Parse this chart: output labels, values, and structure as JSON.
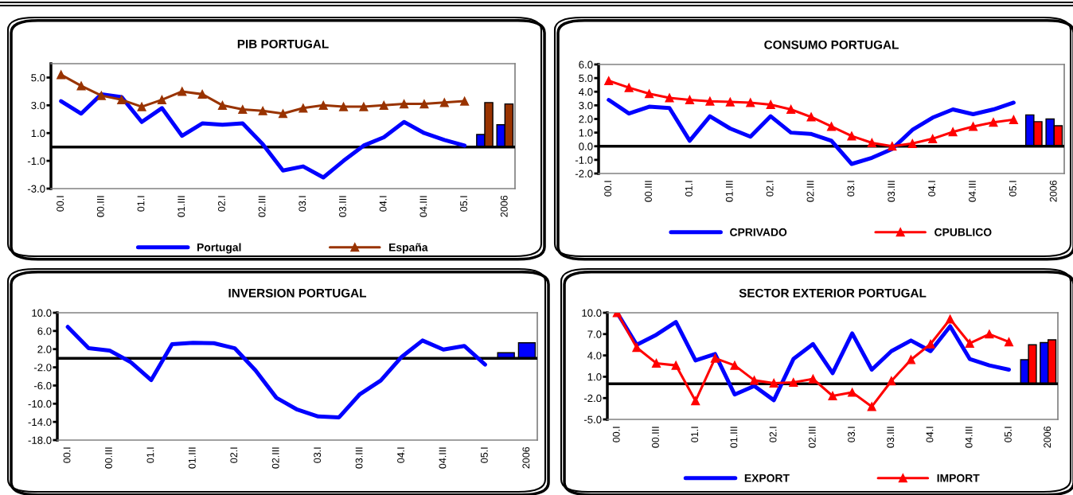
{
  "chart_data": [
    {
      "type": "line",
      "title": "PIB PORTUGAL",
      "categories": [
        "00.I",
        null,
        "00.III",
        null,
        "01.I",
        null,
        "01.III",
        null,
        "02.I",
        null,
        "02.III",
        null,
        "03.I",
        null,
        "03.III",
        null,
        "04.I",
        null,
        "04.III",
        null,
        "05.I",
        null,
        "2006"
      ],
      "series": [
        {
          "name": "Portugal",
          "color": "#0000ff",
          "values": [
            3.3,
            2.4,
            3.8,
            3.6,
            1.8,
            2.8,
            0.8,
            1.7,
            1.6,
            1.7,
            0.2,
            -1.7,
            -1.4,
            -2.2,
            -1.0,
            0.1,
            0.7,
            1.8,
            1.0,
            0.5,
            0.1,
            null,
            null
          ]
        },
        {
          "name": "España",
          "color": "#993300",
          "marker": "triangle",
          "values": [
            5.2,
            4.4,
            3.7,
            3.4,
            2.9,
            3.4,
            4.0,
            3.8,
            3.0,
            2.7,
            2.6,
            2.4,
            2.8,
            3.0,
            2.9,
            2.9,
            3.0,
            3.1,
            3.1,
            3.2,
            3.3,
            null,
            null
          ]
        },
        {
          "type": "bar",
          "color": "#0000ff",
          "values": [
            null,
            null,
            null,
            null,
            null,
            null,
            null,
            null,
            null,
            null,
            null,
            null,
            null,
            null,
            null,
            null,
            null,
            null,
            null,
            null,
            null,
            0.9,
            1.6
          ]
        },
        {
          "type": "bar",
          "color": "#993300",
          "values": [
            null,
            null,
            null,
            null,
            null,
            null,
            null,
            null,
            null,
            null,
            null,
            null,
            null,
            null,
            null,
            null,
            null,
            null,
            null,
            null,
            null,
            3.2,
            3.1
          ]
        }
      ],
      "ylim": [
        -3,
        6
      ],
      "yticks": [
        {
          "value": -3,
          "label": "-3.0"
        },
        {
          "value": -1,
          "label": "-1.0"
        },
        {
          "value": 1,
          "label": "1.0"
        },
        {
          "value": 3,
          "label": "3.0"
        },
        {
          "value": 5,
          "label": "5.0"
        }
      ],
      "ref_lines": [
        {
          "axis": "y",
          "value": 0,
          "color": "#000000"
        }
      ],
      "grid": false,
      "legend": "bottom"
    },
    {
      "type": "line",
      "title": "CONSUMO PORTUGAL",
      "categories": [
        "00.I",
        null,
        "00.III",
        null,
        "01.I",
        null,
        "01.III",
        null,
        "02.I",
        null,
        "02.III",
        null,
        "03.I",
        null,
        "03.III",
        null,
        "04.I",
        null,
        "04.III",
        null,
        "05.I",
        null,
        "2006"
      ],
      "series": [
        {
          "name": "CPRIVADO",
          "color": "#0000ff",
          "values": [
            3.4,
            2.4,
            2.9,
            2.8,
            0.4,
            2.2,
            1.3,
            0.7,
            2.2,
            1.0,
            0.9,
            0.4,
            -1.3,
            -0.85,
            -0.2,
            1.2,
            2.1,
            2.7,
            2.35,
            2.7,
            3.2,
            null,
            null
          ]
        },
        {
          "name": "CPUBLICO",
          "color": "#ff0000",
          "marker": "triangle",
          "values": [
            4.8,
            4.3,
            3.85,
            3.55,
            3.4,
            3.3,
            3.25,
            3.2,
            3.05,
            2.7,
            2.15,
            1.45,
            0.75,
            0.25,
            0.0,
            0.2,
            0.55,
            1.05,
            1.45,
            1.75,
            1.95,
            null,
            null
          ]
        },
        {
          "type": "bar",
          "color": "#0000ff",
          "values": [
            null,
            null,
            null,
            null,
            null,
            null,
            null,
            null,
            null,
            null,
            null,
            null,
            null,
            null,
            null,
            null,
            null,
            null,
            null,
            null,
            null,
            2.3,
            2.0
          ]
        },
        {
          "type": "bar",
          "color": "#ff0000",
          "values": [
            null,
            null,
            null,
            null,
            null,
            null,
            null,
            null,
            null,
            null,
            null,
            null,
            null,
            null,
            null,
            null,
            null,
            null,
            null,
            null,
            null,
            1.8,
            1.5
          ]
        }
      ],
      "ylim": [
        -2,
        6
      ],
      "yticks": [
        {
          "value": -2,
          "label": "-2.0"
        },
        {
          "value": -1,
          "label": "-1.0"
        },
        {
          "value": 0,
          "label": "0.0"
        },
        {
          "value": 1,
          "label": "1.0"
        },
        {
          "value": 2,
          "label": "2.0"
        },
        {
          "value": 3,
          "label": "3.0"
        },
        {
          "value": 4,
          "label": "4.0"
        },
        {
          "value": 5,
          "label": "5.0"
        },
        {
          "value": 6,
          "label": "6.0"
        }
      ],
      "ref_lines": [
        {
          "axis": "y",
          "value": 0,
          "color": "#000000"
        }
      ],
      "grid": false,
      "legend": "bottom"
    },
    {
      "type": "line",
      "title": "INVERSION PORTUGAL",
      "categories": [
        "00.I",
        null,
        "00.III",
        null,
        "01.I",
        null,
        "01.III",
        null,
        "02.I",
        null,
        "02.III",
        null,
        "03.I",
        null,
        "03.III",
        null,
        "04.I",
        null,
        "04.III",
        null,
        "05.I",
        null,
        "2006"
      ],
      "series": [
        {
          "color": "#0000ff",
          "values": [
            6.9,
            2.2,
            1.7,
            -0.8,
            -4.8,
            3.1,
            3.4,
            3.3,
            2.2,
            -2.7,
            -8.7,
            -11.3,
            -12.8,
            -13.0,
            -7.9,
            -4.9,
            0.3,
            3.9,
            1.9,
            2.7,
            -1.4,
            null,
            null
          ]
        },
        {
          "type": "bar",
          "color": "#0000ff",
          "values": [
            null,
            null,
            null,
            null,
            null,
            null,
            null,
            null,
            null,
            null,
            null,
            null,
            null,
            null,
            null,
            null,
            null,
            null,
            null,
            null,
            null,
            1.2,
            3.4
          ]
        }
      ],
      "ylim": [
        -18,
        10
      ],
      "yticks": [
        {
          "value": -18,
          "label": "-18.0"
        },
        {
          "value": -14,
          "label": "-14.0"
        },
        {
          "value": -10,
          "label": "-10.0"
        },
        {
          "value": -6,
          "label": "-6.0"
        },
        {
          "value": -2,
          "label": "-2.0"
        },
        {
          "value": 2,
          "label": "2.0"
        },
        {
          "value": 6,
          "label": "6.0"
        },
        {
          "value": 10,
          "label": "10.0"
        }
      ],
      "ref_lines": [
        {
          "axis": "y",
          "value": 0,
          "color": "#000000"
        }
      ],
      "grid": false
    },
    {
      "type": "line",
      "title": "SECTOR EXTERIOR PORTUGAL",
      "categories": [
        "00.I",
        null,
        "00.III",
        null,
        "01.I",
        null,
        "01.III",
        null,
        "02.I",
        null,
        "02.III",
        null,
        "03.I",
        null,
        "03.III",
        null,
        "04.I",
        null,
        "04.III",
        null,
        "05.I",
        null,
        "2006"
      ],
      "series": [
        {
          "name": "EXPORT",
          "color": "#0000ff",
          "values": [
            10.0,
            5.5,
            6.9,
            8.7,
            3.3,
            4.2,
            -1.5,
            -0.3,
            -2.3,
            3.5,
            5.6,
            1.5,
            7.1,
            2.0,
            4.6,
            6.1,
            4.6,
            8.1,
            3.5,
            2.6,
            2.0,
            null,
            null
          ]
        },
        {
          "name": "IMPORT",
          "color": "#ff0000",
          "marker": "triangle",
          "values": [
            10.0,
            5.1,
            2.9,
            2.6,
            -2.4,
            3.6,
            2.6,
            0.5,
            0.1,
            0.2,
            0.7,
            -1.7,
            -1.2,
            -3.2,
            0.4,
            3.4,
            5.6,
            9.1,
            5.7,
            7.0,
            5.9,
            null,
            null
          ]
        },
        {
          "type": "bar",
          "color": "#0000ff",
          "values": [
            null,
            null,
            null,
            null,
            null,
            null,
            null,
            null,
            null,
            null,
            null,
            null,
            null,
            null,
            null,
            null,
            null,
            null,
            null,
            null,
            null,
            3.4,
            5.8
          ]
        },
        {
          "type": "bar",
          "color": "#ff0000",
          "values": [
            null,
            null,
            null,
            null,
            null,
            null,
            null,
            null,
            null,
            null,
            null,
            null,
            null,
            null,
            null,
            null,
            null,
            null,
            null,
            null,
            null,
            5.5,
            6.2
          ]
        }
      ],
      "ylim": [
        -5,
        10
      ],
      "yticks": [
        {
          "value": -5,
          "label": "-5.0"
        },
        {
          "value": -2,
          "label": "-2.0"
        },
        {
          "value": 1,
          "label": "1.0"
        },
        {
          "value": 4,
          "label": "4.0"
        },
        {
          "value": 7,
          "label": "7.0"
        },
        {
          "value": 10,
          "label": "10.0"
        }
      ],
      "ref_lines": [
        {
          "axis": "y",
          "value": 0,
          "color": "#000000"
        }
      ],
      "grid": false,
      "legend": "bottom"
    }
  ]
}
